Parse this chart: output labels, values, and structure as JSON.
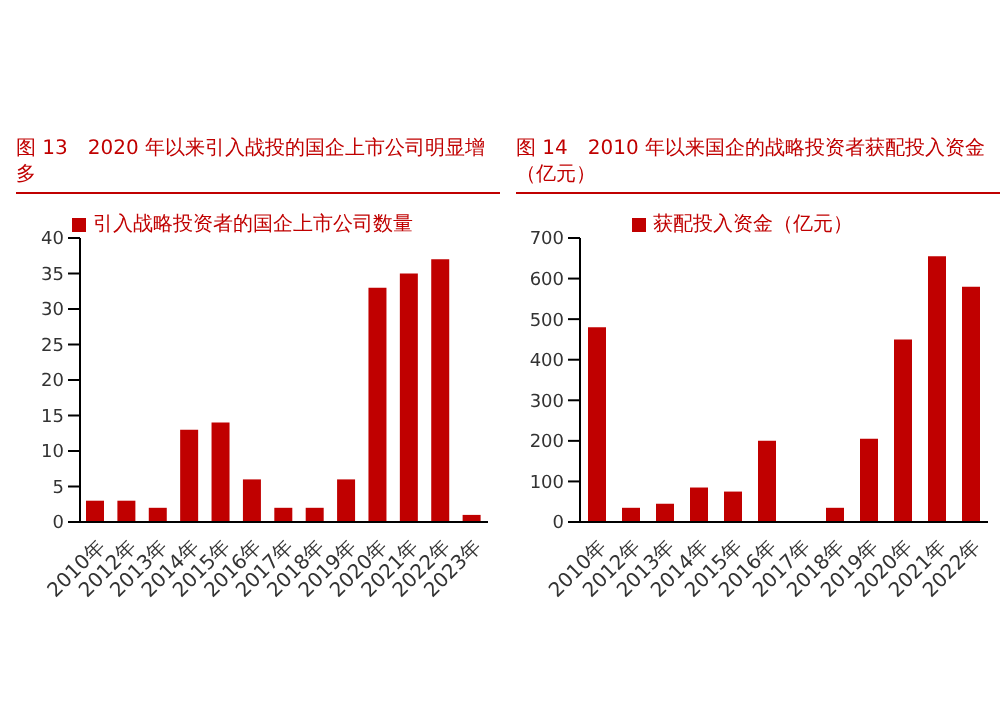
{
  "chart_data": [
    {
      "type": "bar",
      "title": "图 13　2020 年以来引入战投的国企上市公司明显增多",
      "categories": [
        "2010年",
        "2012年",
        "2013年",
        "2014年",
        "2015年",
        "2016年",
        "2017年",
        "2018年",
        "2019年",
        "2020年",
        "2021年",
        "2022年",
        "2023年"
      ],
      "series": [
        {
          "name": "引入战略投资者的国企上市公司数量",
          "color": "#c00000",
          "values": [
            3,
            3,
            2,
            13,
            14,
            6,
            2,
            2,
            6,
            33,
            35,
            37,
            1
          ]
        }
      ],
      "ylim": [
        0,
        40
      ],
      "yticks": [
        0,
        5,
        10,
        15,
        20,
        25,
        30,
        35,
        40
      ],
      "grid": false,
      "legend": "top"
    },
    {
      "type": "bar",
      "title": "图 14　2010 年以来国企的战略投资者获配投入资金（亿元）",
      "categories": [
        "2010年",
        "2012年",
        "2013年",
        "2014年",
        "2015年",
        "2016年",
        "2017年",
        "2018年",
        "2019年",
        "2020年",
        "2021年",
        "2022年"
      ],
      "series": [
        {
          "name": "获配投入资金（亿元）",
          "color": "#c00000",
          "values": [
            480,
            35,
            45,
            85,
            75,
            200,
            0,
            35,
            205,
            450,
            655,
            580
          ]
        }
      ],
      "ylim": [
        0,
        700
      ],
      "yticks": [
        0,
        100,
        200,
        300,
        400,
        500,
        600,
        700
      ],
      "grid": false,
      "legend": "top"
    }
  ]
}
